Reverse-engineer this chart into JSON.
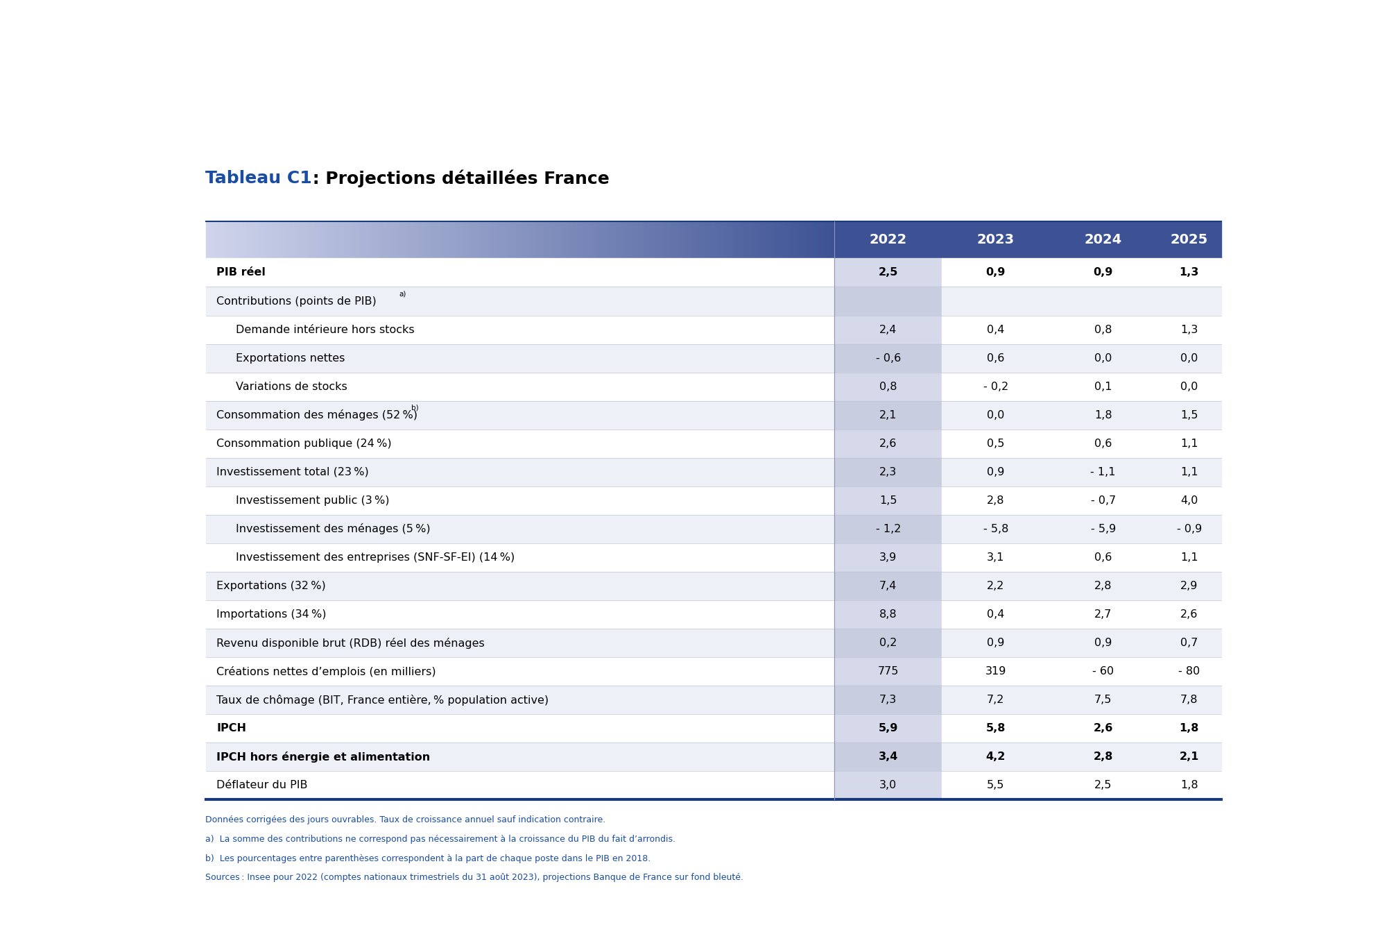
{
  "title_blue": "Tableau C1",
  "title_black": " : Projections détaillées France",
  "header_years": [
    "2022",
    "2023",
    "2024",
    "2025"
  ],
  "header_bg": "#3d5294",
  "header_text_color": "#ffffff",
  "row_bg_even": "#ffffff",
  "row_bg_odd": "#eef0f8",
  "col2022_shade": "#d5d9ea",
  "col2022_shade_odd": "#c9cde0",
  "rows": [
    {
      "label": "PIB réel",
      "indent": 0,
      "bold": true,
      "values": [
        "2,5",
        "0,9",
        "0,9",
        "1,3"
      ]
    },
    {
      "label": "Contributions (points de PIB)",
      "superscript": "a)",
      "indent": 0,
      "bold": false,
      "values": [
        "",
        "",
        "",
        ""
      ]
    },
    {
      "label": "Demande intérieure hors stocks",
      "indent": 1,
      "bold": false,
      "values": [
        "2,4",
        "0,4",
        "0,8",
        "1,3"
      ]
    },
    {
      "label": "Exportations nettes",
      "indent": 1,
      "bold": false,
      "values": [
        "- 0,6",
        "0,6",
        "0,0",
        "0,0"
      ]
    },
    {
      "label": "Variations de stocks",
      "indent": 1,
      "bold": false,
      "values": [
        "0,8",
        "- 0,2",
        "0,1",
        "0,0"
      ]
    },
    {
      "label": "Consommation des ménages (52 %)",
      "superscript": "b)",
      "indent": 0,
      "bold": false,
      "values": [
        "2,1",
        "0,0",
        "1,8",
        "1,5"
      ]
    },
    {
      "label": "Consommation publique (24 %)",
      "indent": 0,
      "bold": false,
      "values": [
        "2,6",
        "0,5",
        "0,6",
        "1,1"
      ]
    },
    {
      "label": "Investissement total (23 %)",
      "indent": 0,
      "bold": false,
      "values": [
        "2,3",
        "0,9",
        "- 1,1",
        "1,1"
      ]
    },
    {
      "label": "Investissement public (3 %)",
      "indent": 1,
      "bold": false,
      "values": [
        "1,5",
        "2,8",
        "- 0,7",
        "4,0"
      ]
    },
    {
      "label": "Investissement des ménages (5 %)",
      "indent": 1,
      "bold": false,
      "values": [
        "- 1,2",
        "- 5,8",
        "- 5,9",
        "- 0,9"
      ]
    },
    {
      "label": "Investissement des entreprises (SNF-SF-EI) (14 %)",
      "indent": 1,
      "bold": false,
      "values": [
        "3,9",
        "3,1",
        "0,6",
        "1,1"
      ]
    },
    {
      "label": "Exportations (32 %)",
      "indent": 0,
      "bold": false,
      "values": [
        "7,4",
        "2,2",
        "2,8",
        "2,9"
      ]
    },
    {
      "label": "Importations (34 %)",
      "indent": 0,
      "bold": false,
      "values": [
        "8,8",
        "0,4",
        "2,7",
        "2,6"
      ]
    },
    {
      "label": "Revenu disponible brut (RDB) réel des ménages",
      "indent": 0,
      "bold": false,
      "values": [
        "0,2",
        "0,9",
        "0,9",
        "0,7"
      ]
    },
    {
      "label": "Créations nettes d’emplois (en milliers)",
      "indent": 0,
      "bold": false,
      "values": [
        "775",
        "319",
        "- 60",
        "- 80"
      ]
    },
    {
      "label": "Taux de chômage (BIT, France entière, % population active)",
      "indent": 0,
      "bold": false,
      "values": [
        "7,3",
        "7,2",
        "7,5",
        "7,8"
      ]
    },
    {
      "label": "IPCH",
      "indent": 0,
      "bold": true,
      "values": [
        "5,9",
        "5,8",
        "2,6",
        "1,8"
      ]
    },
    {
      "label": "IPCH hors énergie et alimentation",
      "indent": 0,
      "bold": true,
      "values": [
        "3,4",
        "4,2",
        "2,8",
        "2,1"
      ]
    },
    {
      "label": "Déflateur du PIB",
      "indent": 0,
      "bold": false,
      "values": [
        "3,0",
        "5,5",
        "2,5",
        "1,8"
      ]
    }
  ],
  "footnotes": [
    "Données corrigées des jours ouvrables. Taux de croissance annuel sauf indication contraire.",
    "a)  La somme des contributions ne correspond pas nécessairement à la croissance du PIB du fait d’arrondis.",
    "b)  Les pourcentages entre parenthèses correspondent à la part de chaque poste dans le PIB en 2018.",
    "Sources : Insee pour 2022 (comptes nationaux trimestriels du 31 août 2023), projections Banque de France sur fond bleuté."
  ],
  "footnote_color": "#1a4da1",
  "blue_dark": "#1a3a7a",
  "blue_title": "#1a4da1",
  "text_color": "#000000"
}
